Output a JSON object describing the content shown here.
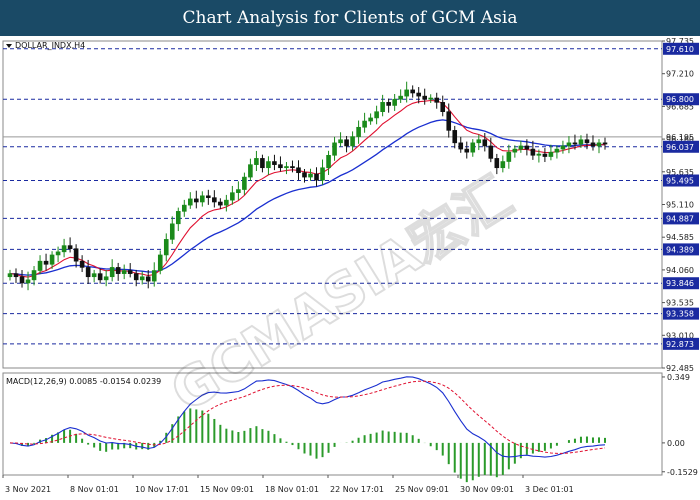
{
  "header": {
    "title": "Chart Analysis for Clients of GCM Asia"
  },
  "chart_data": [
    {
      "type": "candlestick",
      "symbol_label": "DOLLAR_INDX,H4",
      "ylim": [
        92.485,
        97.735
      ],
      "y_ticks": [
        "97.735",
        "97.210",
        "96.685",
        "96.160",
        "95.635",
        "95.110",
        "94.585",
        "94.060",
        "93.535",
        "93.010",
        "92.485"
      ],
      "price_line": "96.195",
      "levels": [
        {
          "value": 97.61,
          "label": "97.610"
        },
        {
          "value": 96.8,
          "label": "96.800"
        },
        {
          "value": 96.037,
          "label": "96.037"
        },
        {
          "value": 95.495,
          "label": "95.495"
        },
        {
          "value": 94.887,
          "label": "94.887"
        },
        {
          "value": 94.389,
          "label": "94.389"
        },
        {
          "value": 93.846,
          "label": "93.846"
        },
        {
          "value": 93.358,
          "label": "93.358"
        },
        {
          "value": 92.873,
          "label": "92.873"
        }
      ],
      "x_labels": [
        "3 Nov 2021",
        "8 Nov 01:01",
        "10 Nov 17:01",
        "15 Nov 09:01",
        "18 Nov 01:01",
        "22 Nov 17:01",
        "25 Nov 09:01",
        "30 Nov 09:01",
        "3 Dec 01:01"
      ],
      "closes": [
        94.0,
        93.95,
        93.85,
        93.9,
        94.05,
        94.2,
        94.15,
        94.3,
        94.35,
        94.45,
        94.4,
        94.2,
        94.1,
        93.95,
        94.0,
        93.9,
        93.95,
        94.1,
        94.0,
        94.05,
        94.0,
        93.9,
        93.95,
        93.88,
        94.05,
        94.3,
        94.55,
        94.8,
        95.0,
        95.1,
        95.2,
        95.15,
        95.25,
        95.22,
        95.15,
        95.1,
        95.18,
        95.3,
        95.35,
        95.55,
        95.75,
        95.85,
        95.7,
        95.8,
        95.75,
        95.7,
        95.72,
        95.7,
        95.62,
        95.55,
        95.6,
        95.5,
        95.7,
        95.9,
        96.1,
        96.15,
        96.05,
        96.2,
        96.35,
        96.45,
        96.5,
        96.6,
        96.75,
        96.7,
        96.8,
        96.85,
        96.95,
        96.9,
        96.85,
        96.8,
        96.82,
        96.75,
        96.6,
        96.3,
        96.1,
        96.0,
        95.95,
        96.1,
        96.15,
        96.05,
        95.85,
        95.7,
        95.8,
        95.95,
        96.0,
        96.05,
        96.0,
        95.9,
        95.92,
        95.88,
        95.95,
        96.0,
        96.05,
        96.1,
        96.08,
        96.15,
        96.1,
        96.05,
        96.1,
        96.08
      ],
      "series": [
        {
          "name": "fast MA",
          "color": "#e01030"
        },
        {
          "name": "slow MA",
          "color": "#1a2fd0"
        }
      ],
      "colors": {
        "up": "#1a8a1a",
        "down": "#111111"
      }
    },
    {
      "type": "line+bar",
      "label": "MACD(12,26,9) 0.0085 -0.0154 0.0239",
      "y_ticks": [
        "0.349",
        "0.00",
        "-0.1529"
      ],
      "ylim": [
        -0.17,
        0.37
      ],
      "series": [
        {
          "name": "histogram",
          "color": "#2a9a2a"
        },
        {
          "name": "MACD",
          "color": "#1a2fd0"
        },
        {
          "name": "signal",
          "color": "#e01030"
        }
      ]
    }
  ]
}
